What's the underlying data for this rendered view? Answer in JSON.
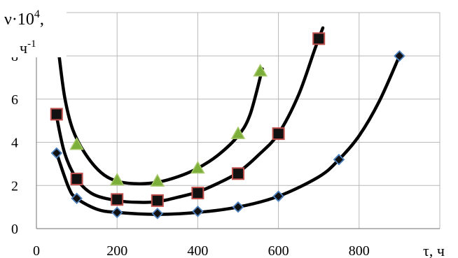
{
  "chart_data": {
    "type": "scatter",
    "title": "",
    "ylabel": "ν·10⁴, ч⁻¹",
    "ylabel_main": "ν·10",
    "ylabel_sup": "4",
    "ylabel_comma": ",",
    "ylabel_unit": "ч",
    "ylabel_unit_sup": "-1",
    "xlabel": "τ, ч",
    "xlim": [
      0,
      1000
    ],
    "ylim": [
      0,
      8
    ],
    "x_ticks": [
      0,
      200,
      400,
      600,
      800
    ],
    "y_ticks": [
      0,
      2,
      4,
      6,
      8
    ],
    "grid": true,
    "legend": "none",
    "series": [
      {
        "marker": "triangle",
        "fill": "#7cae3a",
        "edge": "#a6c86a",
        "points": [
          [
            100,
            3.9
          ],
          [
            200,
            2.25
          ],
          [
            300,
            2.2
          ],
          [
            400,
            2.8
          ],
          [
            500,
            4.4
          ],
          [
            555,
            7.3
          ]
        ],
        "trend": [
          [
            55,
            8.2
          ],
          [
            70,
            6.1
          ],
          [
            90,
            4.6
          ],
          [
            120,
            3.5
          ],
          [
            160,
            2.6
          ],
          [
            200,
            2.2
          ],
          [
            250,
            2.08
          ],
          [
            300,
            2.15
          ],
          [
            350,
            2.4
          ],
          [
            400,
            2.8
          ],
          [
            450,
            3.4
          ],
          [
            500,
            4.3
          ],
          [
            530,
            5.3
          ],
          [
            560,
            7.4
          ]
        ]
      },
      {
        "marker": "square",
        "fill": "#111111",
        "edge": "#c0504d",
        "points": [
          [
            50,
            5.3
          ],
          [
            100,
            2.3
          ],
          [
            200,
            1.35
          ],
          [
            300,
            1.3
          ],
          [
            400,
            1.65
          ],
          [
            500,
            2.55
          ],
          [
            600,
            4.4
          ],
          [
            700,
            8.8
          ]
        ],
        "trend": [
          [
            50,
            5.2
          ],
          [
            70,
            3.5
          ],
          [
            100,
            2.3
          ],
          [
            140,
            1.6
          ],
          [
            200,
            1.3
          ],
          [
            250,
            1.22
          ],
          [
            300,
            1.25
          ],
          [
            350,
            1.45
          ],
          [
            400,
            1.7
          ],
          [
            450,
            2.1
          ],
          [
            500,
            2.6
          ],
          [
            550,
            3.4
          ],
          [
            600,
            4.4
          ],
          [
            650,
            6.2
          ],
          [
            690,
            8.3
          ],
          [
            710,
            9.3
          ]
        ]
      },
      {
        "marker": "diamond",
        "fill": "#111111",
        "edge": "#4f81bd",
        "points": [
          [
            50,
            3.5
          ],
          [
            100,
            1.4
          ],
          [
            200,
            0.75
          ],
          [
            300,
            0.7
          ],
          [
            400,
            0.8
          ],
          [
            500,
            1.0
          ],
          [
            600,
            1.5
          ],
          [
            750,
            3.2
          ],
          [
            900,
            8.0
          ]
        ],
        "trend": [
          [
            50,
            3.5
          ],
          [
            80,
            1.9
          ],
          [
            100,
            1.4
          ],
          [
            150,
            0.9
          ],
          [
            200,
            0.75
          ],
          [
            300,
            0.66
          ],
          [
            400,
            0.75
          ],
          [
            500,
            1.0
          ],
          [
            600,
            1.5
          ],
          [
            700,
            2.4
          ],
          [
            750,
            3.2
          ],
          [
            800,
            4.3
          ],
          [
            850,
            5.9
          ],
          [
            900,
            8.0
          ]
        ]
      }
    ]
  }
}
